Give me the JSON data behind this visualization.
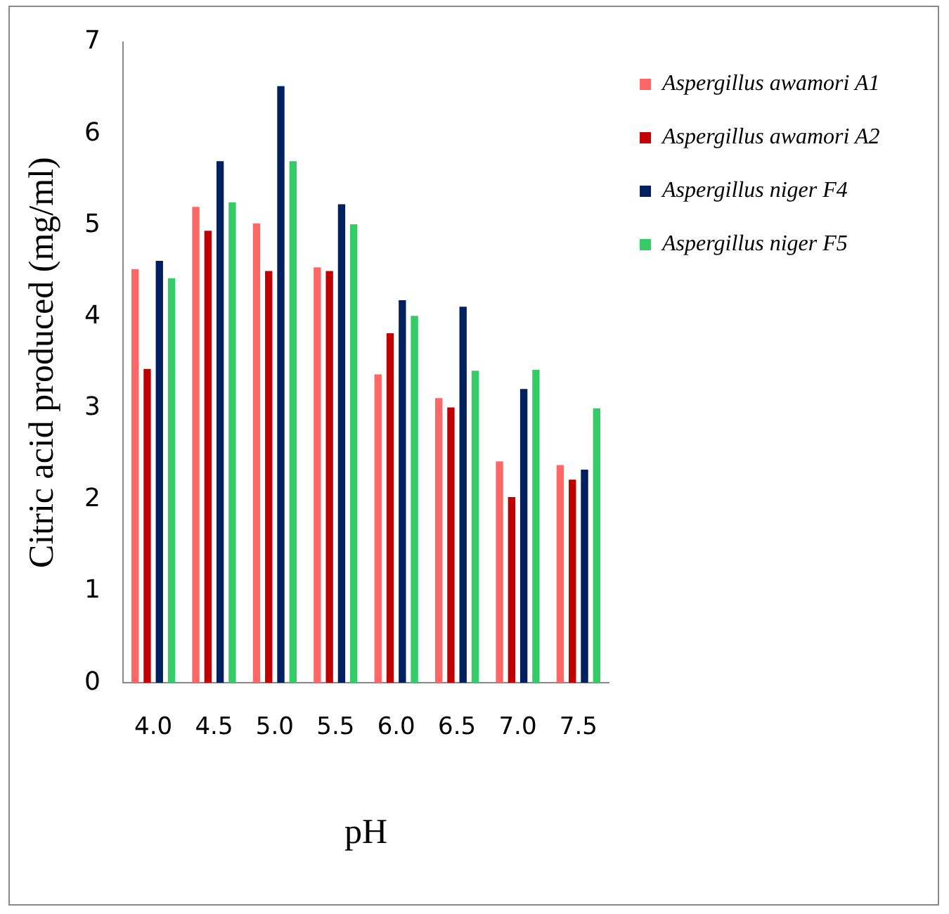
{
  "chart_data": {
    "type": "bar",
    "xlabel": "pH",
    "ylabel": "Citric acid produced (mg/ml)",
    "categories": [
      "4.0",
      "4.5",
      "5.0",
      "5.5",
      "6.0",
      "6.5",
      "7.0",
      "7.5"
    ],
    "series": [
      {
        "name": "Aspergillus awamori A1",
        "color": "#ff6666",
        "values": [
          4.52,
          5.2,
          5.02,
          4.54,
          3.37,
          3.11,
          2.42,
          2.38
        ]
      },
      {
        "name": "Aspergillus awamori A2",
        "color": "#c00000",
        "values": [
          3.43,
          4.94,
          4.5,
          4.5,
          3.82,
          3.01,
          2.03,
          2.22
        ]
      },
      {
        "name": "Aspergillus niger F4",
        "color": "#002060",
        "values": [
          4.61,
          5.7,
          6.52,
          5.23,
          4.18,
          4.11,
          3.21,
          2.33
        ]
      },
      {
        "name": "Aspergillus niger F5",
        "color": "#33cc66",
        "values": [
          4.42,
          5.25,
          5.7,
          5.01,
          4.01,
          3.41,
          3.42,
          3.0
        ]
      }
    ],
    "ylim": [
      0,
      7
    ],
    "yticks": [
      0,
      1,
      2,
      3,
      4,
      5,
      6,
      7
    ],
    "grid": false,
    "legend": "top right"
  }
}
